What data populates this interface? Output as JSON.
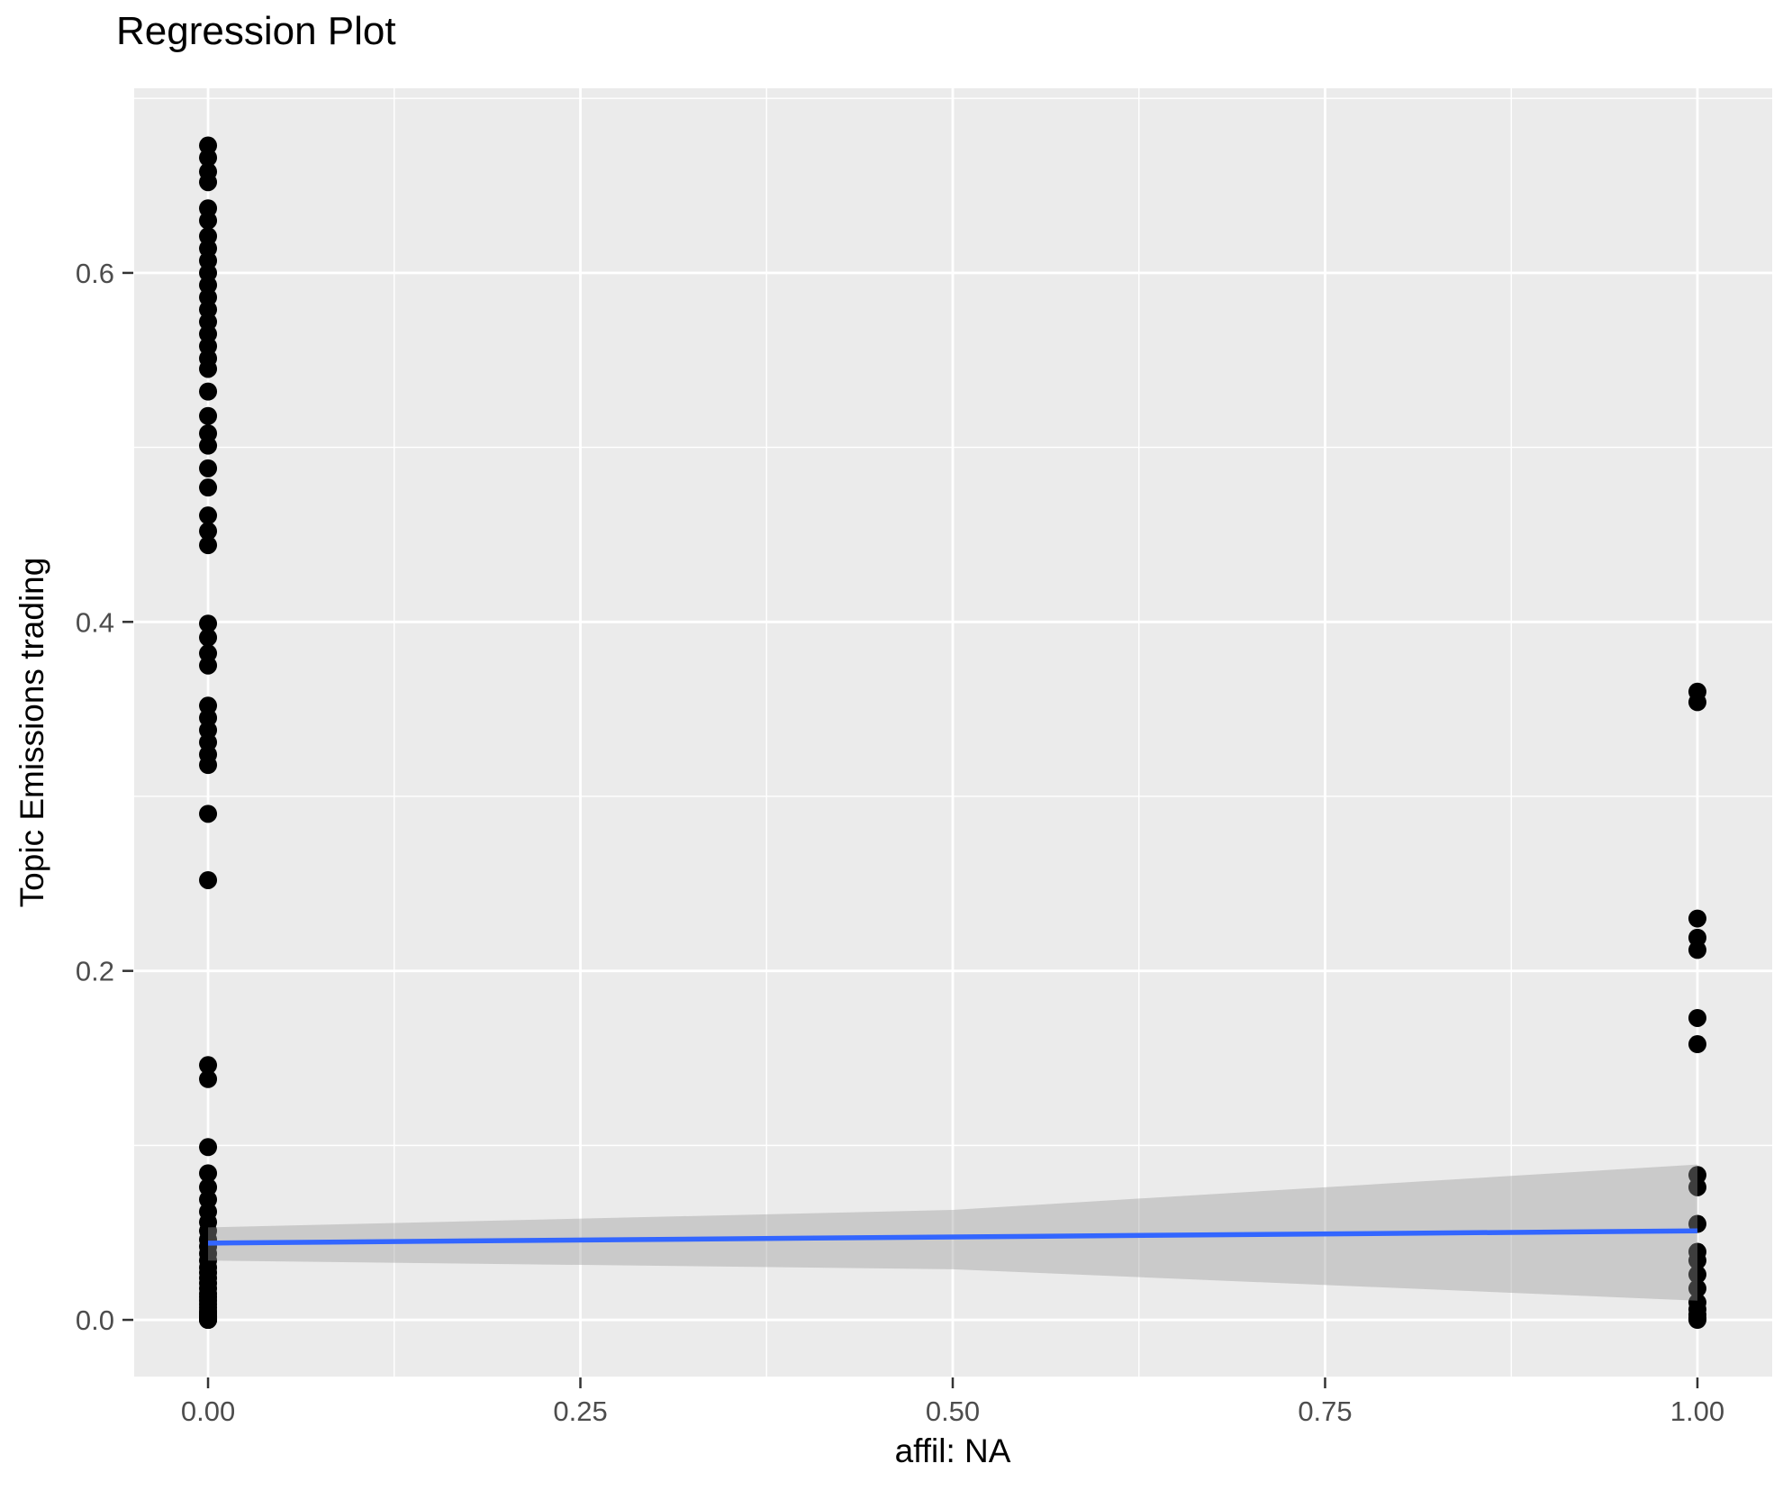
{
  "chart_data": {
    "type": "scatter",
    "title": "Regression Plot",
    "xlabel": "affil: NA",
    "ylabel": "Topic Emissions trading",
    "xlim": [
      -0.0496,
      1.0502
    ],
    "ylim": [
      -0.0325,
      0.7058
    ],
    "grid": true,
    "legend": false,
    "x_ticks": [
      0,
      0.25,
      0.5,
      0.75,
      1
    ],
    "x_tick_labels": [
      "0.00",
      "0.25",
      "0.50",
      "0.75",
      "1.00"
    ],
    "x_minor_ticks": [
      0.125,
      0.375,
      0.625,
      0.875
    ],
    "y_ticks": [
      0,
      0.2,
      0.4,
      0.6
    ],
    "y_tick_labels": [
      "0.0",
      "0.2",
      "0.4",
      "0.6"
    ],
    "y_minor_ticks": [
      0.1,
      0.3,
      0.5,
      0.7
    ],
    "series": [
      {
        "name": "affil = 0",
        "x": 0,
        "y": [
          0.673,
          0.666,
          0.658,
          0.652,
          0.637,
          0.63,
          0.621,
          0.614,
          0.607,
          0.6,
          0.593,
          0.586,
          0.579,
          0.572,
          0.565,
          0.558,
          0.551,
          0.545,
          0.532,
          0.518,
          0.508,
          0.501,
          0.488,
          0.477,
          0.461,
          0.452,
          0.444,
          0.399,
          0.391,
          0.382,
          0.375,
          0.352,
          0.345,
          0.338,
          0.331,
          0.324,
          0.318,
          0.29,
          0.252,
          0.146,
          0.138,
          0.099,
          0.084,
          0.076,
          0.069,
          0.062,
          0.056,
          0.051,
          0.046,
          0.042,
          0.038,
          0.034,
          0.03,
          0.027,
          0.024,
          0.021,
          0.018,
          0.015,
          0.013,
          0.011,
          0.009,
          0.007,
          0.005,
          0.004,
          0.003,
          0.002,
          0.0015,
          0.001,
          0.0005,
          0.0,
          0.0,
          0.0,
          0.0
        ]
      },
      {
        "name": "affil = 1",
        "x": 1,
        "y": [
          0.36,
          0.354,
          0.23,
          0.219,
          0.212,
          0.173,
          0.158,
          0.083,
          0.076,
          0.055,
          0.039,
          0.034,
          0.026,
          0.018,
          0.01,
          0.006,
          0.003,
          0.001,
          0.0005,
          0.0
        ]
      }
    ],
    "regression_line": {
      "x": [
        0,
        1
      ],
      "y": [
        0.044,
        0.051
      ]
    },
    "confidence_band": [
      {
        "x": 0,
        "lo": 0.034,
        "hi": 0.053
      },
      {
        "x": 0.5,
        "lo": 0.029,
        "hi": 0.063
      },
      {
        "x": 1,
        "lo": 0.011,
        "hi": 0.089
      }
    ],
    "colors": {
      "panel": "#EBEBEB",
      "grid": "#FFFFFF",
      "point": "#000000",
      "line": "#3366FF",
      "band": "#999999",
      "band_alpha": 0.4,
      "tick_label_text": "#4D4D4D",
      "tick_mark": "#333333",
      "title_text": "#000000"
    }
  }
}
